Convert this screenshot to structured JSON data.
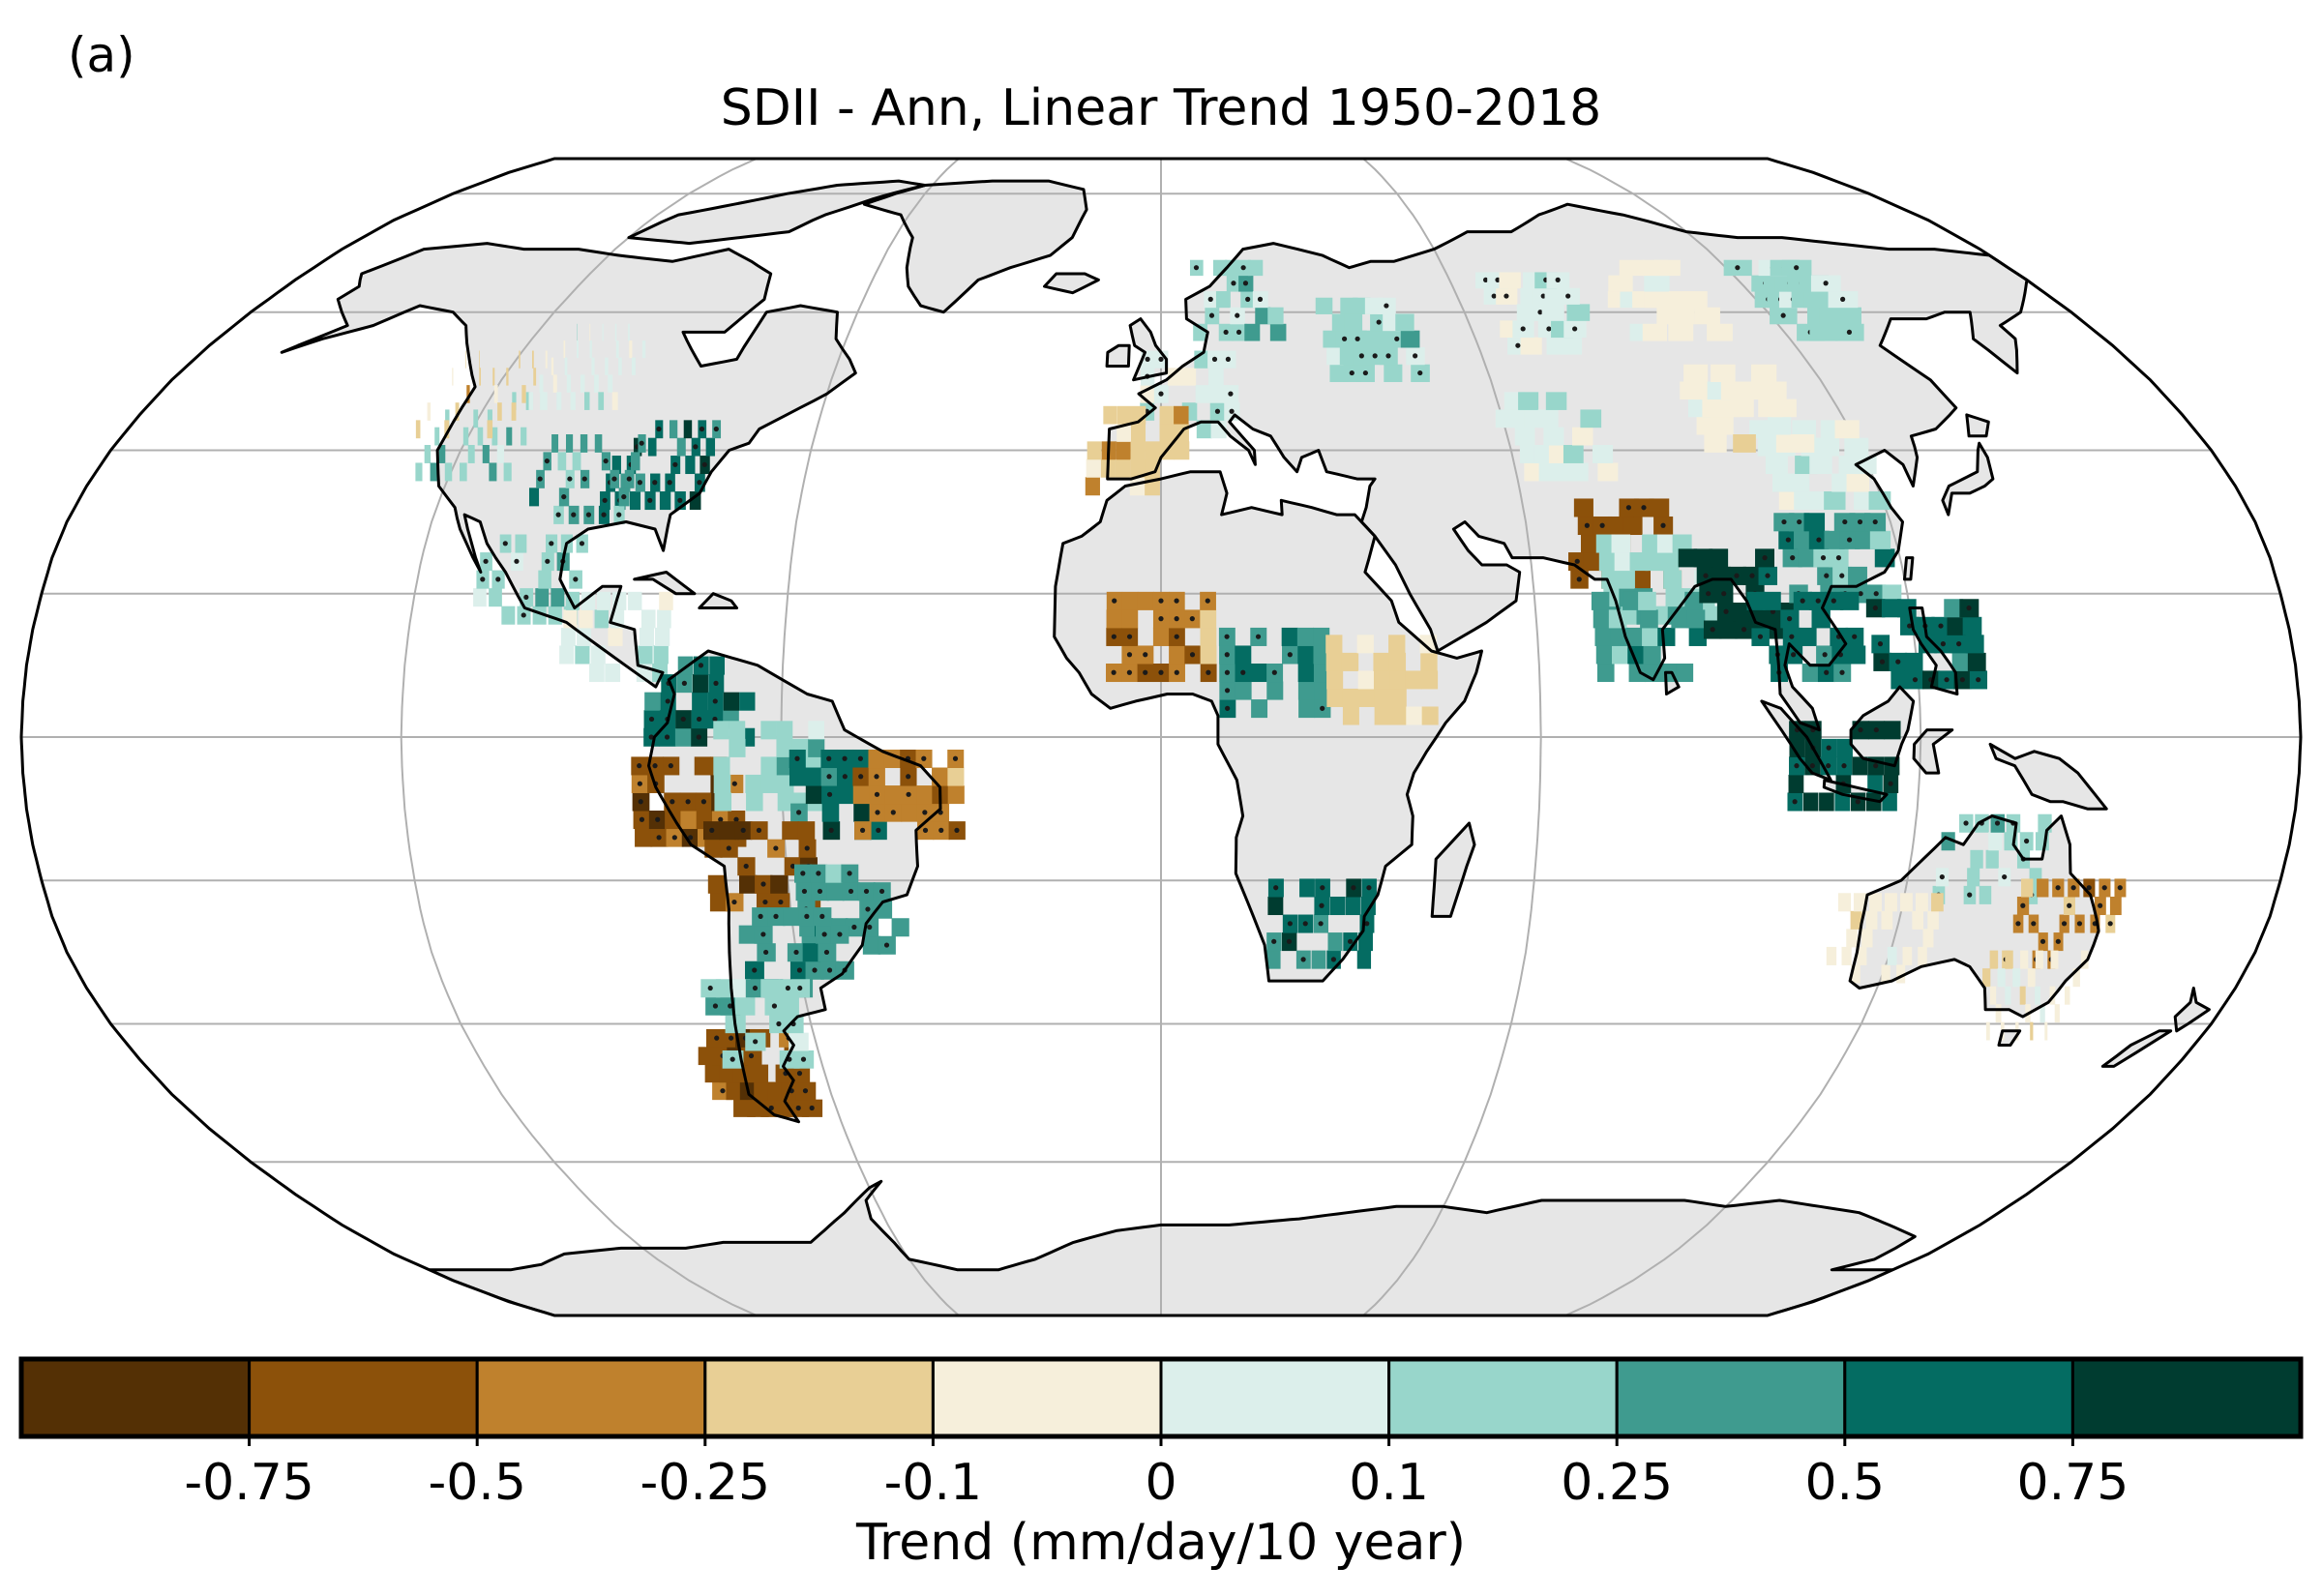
{
  "panel_label": "(a)",
  "title": "SDII - Ann, Linear Trend 1950-2018",
  "colorbar": {
    "label": "Trend (mm/day/10 year)",
    "tick_labels": [
      "-0.75",
      "-0.5",
      "-0.25",
      "-0.1",
      "0",
      "0.1",
      "0.25",
      "0.5",
      "0.75"
    ],
    "colors": [
      "#543005",
      "#8c510a",
      "#bf812d",
      "#e8cf95",
      "#f6efdb",
      "#dcefeb",
      "#98d6cb",
      "#3f9b8f",
      "#046c62",
      "#003c30"
    ]
  },
  "map": {
    "projection": "Robinson",
    "period": "1950-2018",
    "land_color": "#e6e6e6",
    "no_data_color": "#e6e6e6",
    "graticule_color": "#b0b0b0",
    "stippling": "significant trends",
    "regions": [
      {
        "name": "Eastern United States",
        "lon": -85,
        "lat": 38,
        "category": 8,
        "stippled": true
      },
      {
        "name": "Central United States",
        "lon": -97,
        "lat": 36,
        "category": 7,
        "stippled": true
      },
      {
        "name": "Western United States",
        "lon": -118,
        "lat": 42,
        "category": 6,
        "stippled": false
      },
      {
        "name": "Canadian Prairies",
        "lon": -105,
        "lat": 52,
        "category": 5,
        "stippled": false
      },
      {
        "name": "Pacific Northwest",
        "lon": -122,
        "lat": 48,
        "category": 3,
        "stippled": false
      },
      {
        "name": "Mexico",
        "lon": -102,
        "lat": 22,
        "category": 6,
        "stippled": true
      },
      {
        "name": "Central America",
        "lon": -87,
        "lat": 14,
        "category": 5,
        "stippled": false
      },
      {
        "name": "Colombia",
        "lon": -73,
        "lat": 5,
        "category": 8,
        "stippled": true
      },
      {
        "name": "Peru",
        "lon": -75,
        "lat": -9,
        "category": 1,
        "stippled": true
      },
      {
        "name": "Amazon",
        "lon": -62,
        "lat": -4,
        "category": 6,
        "stippled": false
      },
      {
        "name": "Central Brazil",
        "lon": -50,
        "lat": -8,
        "category": 8,
        "stippled": true
      },
      {
        "name": "Northeast Brazil",
        "lon": -40,
        "lat": -8,
        "category": 2,
        "stippled": true
      },
      {
        "name": "Bolivia",
        "lon": -64,
        "lat": -18,
        "category": 1,
        "stippled": true
      },
      {
        "name": "Southern Brazil",
        "lon": -50,
        "lat": -24,
        "category": 7,
        "stippled": true
      },
      {
        "name": "La Plata Basin",
        "lon": -60,
        "lat": -30,
        "category": 7,
        "stippled": true
      },
      {
        "name": "Southern Chile",
        "lon": -72,
        "lat": -47,
        "category": 1,
        "stippled": true
      },
      {
        "name": "Patagonia",
        "lon": -68,
        "lat": -40,
        "category": 6,
        "stippled": true
      },
      {
        "name": "Scandinavia",
        "lon": 15,
        "lat": 62,
        "category": 6,
        "stippled": true
      },
      {
        "name": "European Russia",
        "lon": 40,
        "lat": 56,
        "category": 6,
        "stippled": true
      },
      {
        "name": "Western Europe",
        "lon": 5,
        "lat": 48,
        "category": 5,
        "stippled": true
      },
      {
        "name": "Iberia",
        "lon": -4,
        "lat": 40,
        "category": 3,
        "stippled": false
      },
      {
        "name": "Western Siberia",
        "lon": 75,
        "lat": 60,
        "category": 5,
        "stippled": true
      },
      {
        "name": "Central Siberia",
        "lon": 100,
        "lat": 62,
        "category": 4,
        "stippled": false
      },
      {
        "name": "Eastern Siberia",
        "lon": 130,
        "lat": 62,
        "category": 6,
        "stippled": true
      },
      {
        "name": "Central Asia",
        "lon": 68,
        "lat": 42,
        "category": 5,
        "stippled": false
      },
      {
        "name": "Northwest India",
        "lon": 75,
        "lat": 27,
        "category": 1,
        "stippled": true
      },
      {
        "name": "Central India",
        "lon": 80,
        "lat": 22,
        "category": 6,
        "stippled": false
      },
      {
        "name": "Southern India",
        "lon": 78,
        "lat": 14,
        "category": 7,
        "stippled": false
      },
      {
        "name": "Bangladesh and Myanmar",
        "lon": 93,
        "lat": 20,
        "category": 9,
        "stippled": true
      },
      {
        "name": "Southern China",
        "lon": 110,
        "lat": 25,
        "category": 7,
        "stippled": true
      },
      {
        "name": "Northern China",
        "lon": 112,
        "lat": 38,
        "category": 5,
        "stippled": false
      },
      {
        "name": "Mongolia",
        "lon": 103,
        "lat": 46,
        "category": 4,
        "stippled": false
      },
      {
        "name": "Indochina",
        "lon": 103,
        "lat": 14,
        "category": 8,
        "stippled": true
      },
      {
        "name": "Philippines",
        "lon": 122,
        "lat": 13,
        "category": 8,
        "stippled": true
      },
      {
        "name": "Maritime Continent",
        "lon": 108,
        "lat": -4,
        "category": 9,
        "stippled": true
      },
      {
        "name": "Sahel",
        "lon": 0,
        "lat": 14,
        "category": 2,
        "stippled": true
      },
      {
        "name": "Central Africa",
        "lon": 18,
        "lat": 9,
        "category": 7,
        "stippled": true
      },
      {
        "name": "East Africa",
        "lon": 35,
        "lat": 8,
        "category": 3,
        "stippled": false
      },
      {
        "name": "Southern Africa",
        "lon": 26,
        "lat": -26,
        "category": 8,
        "stippled": true
      },
      {
        "name": "Northern Australia",
        "lon": 133,
        "lat": -17,
        "category": 6,
        "stippled": true
      },
      {
        "name": "Eastern Australia",
        "lon": 147,
        "lat": -26,
        "category": 2,
        "stippled": true
      },
      {
        "name": "Western Australia",
        "lon": 118,
        "lat": -28,
        "category": 4,
        "stippled": false
      },
      {
        "name": "Southeast Australia",
        "lon": 145,
        "lat": -36,
        "category": 4,
        "stippled": false
      }
    ]
  }
}
